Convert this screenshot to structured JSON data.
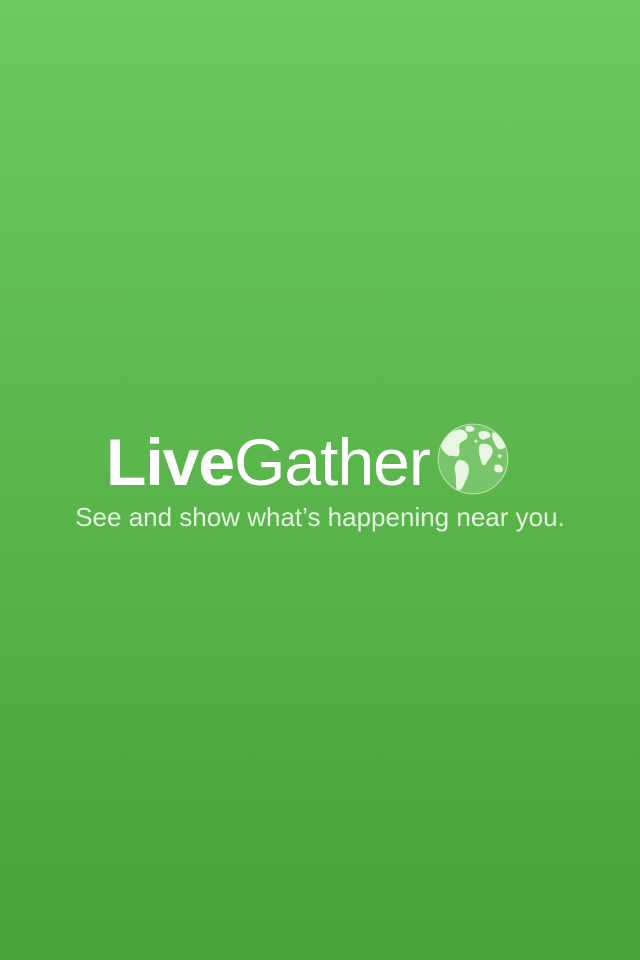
{
  "app": {
    "name_part_bold": "Live",
    "name_part_regular": "Gather",
    "tagline": "See and show what’s happening near you.",
    "logo_icon": "globe-icon"
  },
  "colors": {
    "background_top": "#6cc862",
    "background_bottom": "#48a236",
    "text": "#ffffff",
    "tagline": "#e4f5df",
    "globe_land": "#e8f6e2"
  }
}
